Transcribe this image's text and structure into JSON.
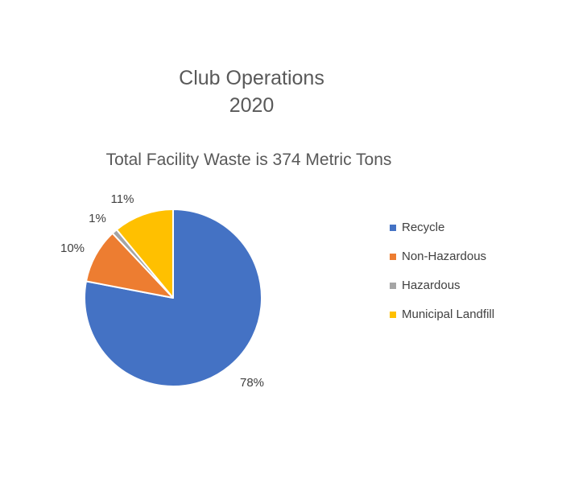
{
  "chart_data": {
    "type": "pie",
    "title": [
      "Club Operations",
      "2020"
    ],
    "subtitle": "Total Facility Waste is 374 Metric Tons",
    "categories": [
      "Recycle",
      "Non-Hazardous",
      "Hazardous",
      "Municipal Landfill"
    ],
    "values": [
      78,
      10,
      1,
      11
    ],
    "labels": [
      "78%",
      "10%",
      "1%",
      "11%"
    ],
    "colors": [
      "#4472C4",
      "#ED7D31",
      "#A5A5A5",
      "#FFC000"
    ],
    "slice_order": "clockwise-from-top",
    "legend_position": "right"
  }
}
